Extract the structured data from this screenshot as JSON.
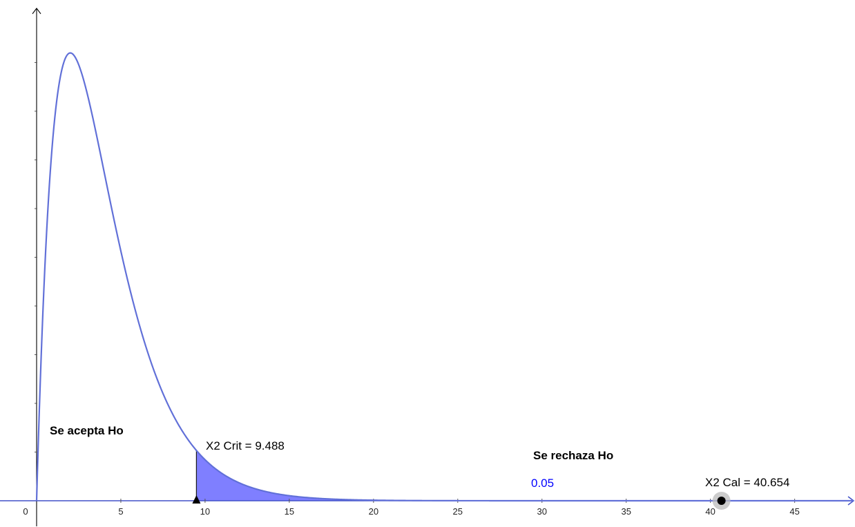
{
  "chart_data": {
    "type": "area",
    "distribution": "chi-squared",
    "degrees_of_freedom": 4,
    "x_ticks": [
      "0",
      "5",
      "10",
      "15",
      "20",
      "25",
      "30",
      "35",
      "40",
      "45"
    ],
    "xlim": [
      0,
      48.5
    ],
    "ylim": [
      0,
      0.2
    ],
    "grid": false,
    "critical_value": 9.488,
    "calculated_value": 40.654,
    "alpha": 0.05,
    "labels": {
      "accept": "Se acepta Ho",
      "reject": "Se rechaza Ho",
      "critical": "X2 Crit = 9.488",
      "calculated": "X2 Cal = 40.654",
      "alpha": "0.05"
    },
    "colors": {
      "curve": "#6170d8",
      "shade": "#7f7fff",
      "axis_line": "#4050c8",
      "alpha_text": "#0000ff"
    }
  }
}
